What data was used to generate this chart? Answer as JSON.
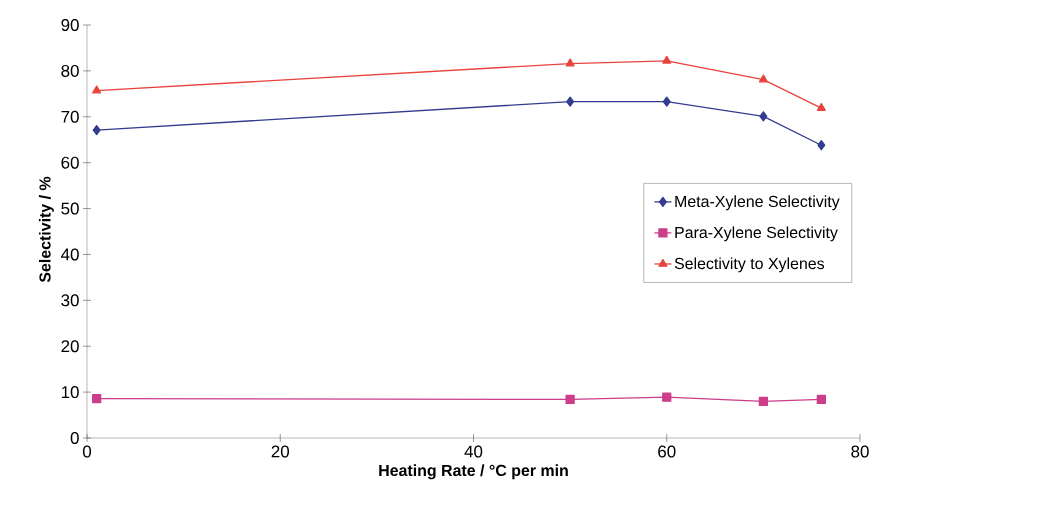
{
  "chart_data": {
    "type": "line",
    "xlabel": "Heating Rate / °C per min",
    "ylabel": "Selectivity / %",
    "x": [
      1,
      50,
      60,
      70,
      76
    ],
    "series": [
      {
        "name": "Meta-Xylene Selectivity",
        "color": "#333d8f",
        "marker": "diamond",
        "values": [
          67.1,
          73.3,
          73.3,
          70.1,
          63.8
        ]
      },
      {
        "name": "Para-Xylene Selectivity",
        "color": "#cc3d8a",
        "marker": "square",
        "values": [
          8.6,
          8.4,
          8.9,
          8.0,
          8.4
        ]
      },
      {
        "name": "Selectivity to Xylenes",
        "color": "#e8433d",
        "marker": "triangle",
        "values": [
          75.7,
          81.6,
          82.2,
          78.1,
          71.9
        ]
      }
    ],
    "xlim": [
      0,
      80
    ],
    "xticks": [
      0,
      20,
      40,
      60,
      80
    ],
    "ylim": [
      0,
      90
    ],
    "yticks": [
      0,
      10,
      20,
      30,
      40,
      50,
      60,
      70,
      80,
      90
    ],
    "legend": "right"
  }
}
